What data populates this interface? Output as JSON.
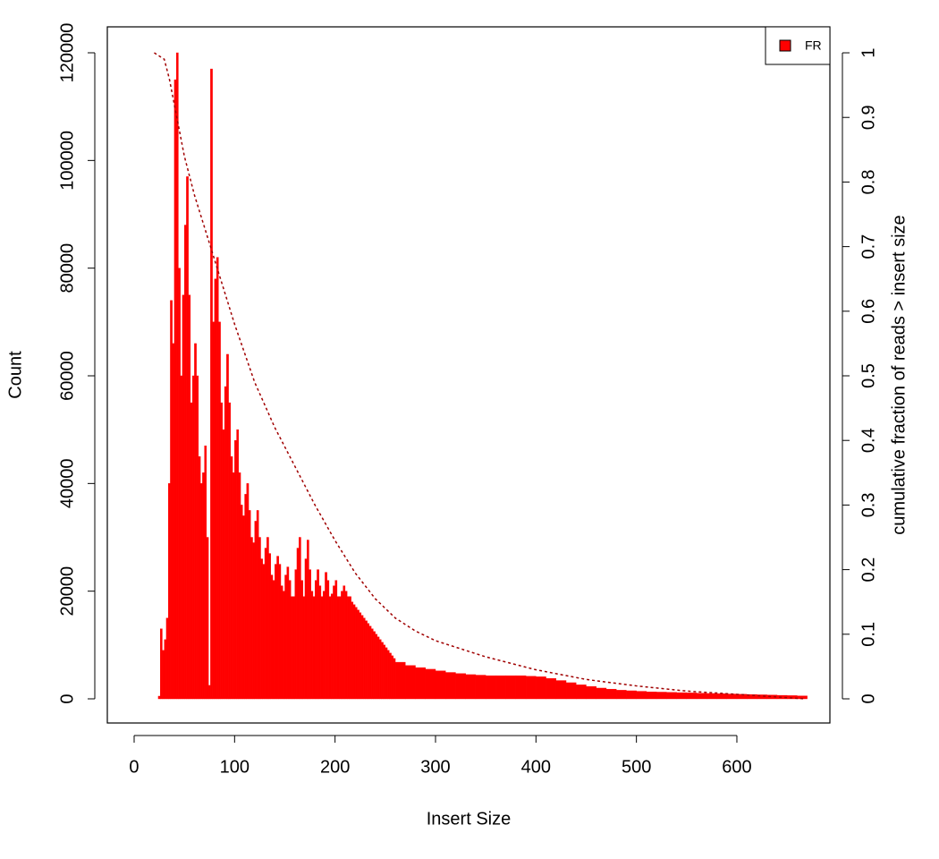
{
  "chart_data": {
    "type": "histogram",
    "xlabel": "Insert Size",
    "ylabel": "Count",
    "y2label": "cumulative fraction of reads > insert size",
    "bins": [
      20,
      22,
      24,
      26,
      28,
      30,
      32,
      34,
      36,
      38,
      40,
      42,
      44,
      46,
      48,
      50,
      52,
      54,
      56,
      58,
      60,
      62,
      64,
      66,
      68,
      70,
      72,
      74,
      76,
      78,
      80,
      82,
      84,
      86,
      88,
      90,
      92,
      94,
      96,
      98,
      100,
      102,
      104,
      106,
      108,
      110,
      112,
      114,
      116,
      118,
      120,
      122,
      124,
      126,
      128,
      130,
      132,
      134,
      136,
      138,
      140,
      142,
      144,
      146,
      148,
      150,
      152,
      154,
      156,
      158,
      160,
      162,
      164,
      166,
      168,
      170,
      172,
      174,
      176,
      178,
      180,
      182,
      184,
      186,
      188,
      190,
      192,
      194,
      196,
      198,
      200,
      202,
      204,
      206,
      208,
      210,
      212,
      214,
      216,
      218,
      220,
      222,
      224,
      226,
      228,
      230,
      232,
      234,
      236,
      238,
      240,
      242,
      244,
      246,
      248,
      250,
      252,
      254,
      256,
      258,
      260,
      270,
      280,
      290,
      300,
      310,
      320,
      330,
      340,
      350,
      360,
      370,
      380,
      390,
      400,
      410,
      420,
      430,
      440,
      450,
      460,
      470,
      480,
      490,
      500,
      510,
      520,
      530,
      540,
      550,
      560,
      570,
      580,
      590,
      600,
      610,
      620,
      630,
      640,
      650,
      660,
      670
    ],
    "series": [
      {
        "name": "FR",
        "color": "#ff0000",
        "values": [
          0,
          0,
          500,
          13000,
          9000,
          11000,
          15000,
          40000,
          74000,
          66000,
          115000,
          120000,
          80000,
          60000,
          75000,
          88000,
          97000,
          75000,
          55000,
          60000,
          66000,
          60000,
          45000,
          40000,
          42000,
          47000,
          30000,
          2500,
          117000,
          70000,
          78000,
          82000,
          70000,
          55000,
          50000,
          58000,
          64000,
          55000,
          45000,
          42000,
          48000,
          50000,
          42000,
          36000,
          34000,
          38000,
          40000,
          35000,
          30000,
          29000,
          33000,
          35000,
          30000,
          26000,
          25000,
          28000,
          30000,
          27000,
          23000,
          22000,
          25000,
          26500,
          25000,
          21000,
          20000,
          23000,
          24500,
          22000,
          19000,
          19000,
          24000,
          28000,
          30000,
          22000,
          19000,
          26000,
          29500,
          24000,
          20000,
          19000,
          22000,
          24000,
          21000,
          19000,
          20000,
          23500,
          22000,
          19000,
          19500,
          21000,
          22000,
          19000,
          19000,
          20000,
          21000,
          20000,
          19000,
          19000,
          18000,
          17500,
          17000,
          16500,
          16000,
          15500,
          15000,
          14500,
          14000,
          13500,
          13000,
          12500,
          12000,
          11500,
          11000,
          10500,
          10000,
          9500,
          9000,
          8500,
          8000,
          7500,
          6800,
          6200,
          5800,
          5500,
          5200,
          4900,
          4700,
          4500,
          4400,
          4300,
          4300,
          4300,
          4300,
          4200,
          4100,
          3800,
          3400,
          3000,
          2600,
          2300,
          2000,
          1800,
          1600,
          1500,
          1400,
          1300,
          1250,
          1200,
          1150,
          1100,
          1050,
          1000,
          950,
          900,
          850,
          800,
          750,
          700,
          650,
          600,
          550
        ]
      }
    ],
    "cumulative": {
      "axis": "y2",
      "color": "#a00000",
      "linestyle": "dashed",
      "x": [
        20,
        30,
        35,
        40,
        50,
        60,
        70,
        80,
        90,
        100,
        120,
        140,
        160,
        180,
        200,
        220,
        240,
        260,
        280,
        300,
        350,
        400,
        450,
        500,
        550,
        600,
        668
      ],
      "values": [
        1,
        0.99,
        0.96,
        0.92,
        0.84,
        0.78,
        0.73,
        0.68,
        0.63,
        0.58,
        0.49,
        0.42,
        0.36,
        0.3,
        0.245,
        0.195,
        0.155,
        0.125,
        0.105,
        0.09,
        0.065,
        0.045,
        0.03,
        0.02,
        0.012,
        0.007,
        0
      ]
    },
    "xlim": [
      -26.7,
      692.6
    ],
    "xticks": [
      0,
      100,
      200,
      300,
      400,
      500,
      600
    ],
    "ylim": [
      -4487,
      124820
    ],
    "yticks": [
      0,
      20000,
      40000,
      60000,
      80000,
      100000,
      120000
    ],
    "y2lim": [
      -0.0374,
      1.0402
    ],
    "y2ticks": [
      0,
      0.1,
      0.2,
      0.3,
      0.4,
      0.5,
      0.6,
      0.7,
      0.8,
      0.9,
      1
    ],
    "legend": "top-right"
  }
}
